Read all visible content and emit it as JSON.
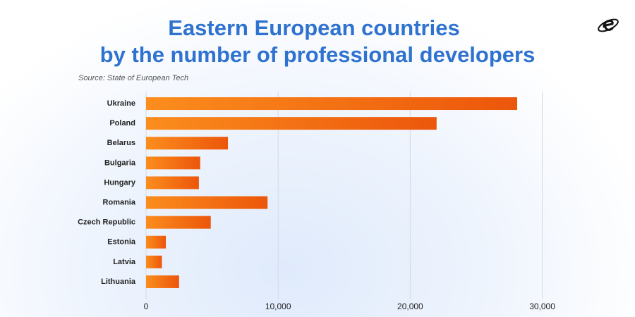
{
  "chart_data": {
    "type": "bar",
    "orientation": "horizontal",
    "title": [
      "Eastern European countries",
      "by the number of professional developers"
    ],
    "subtitle": "Source: State of European Tech",
    "categories": [
      "Ukraine",
      "Poland",
      "Belarus",
      "Bulgaria",
      "Hungary",
      "Romania",
      "Czech Republic",
      "Estonia",
      "Latvia",
      "Lithuania"
    ],
    "values": [
      28100,
      22000,
      6200,
      4100,
      4000,
      9200,
      4900,
      1500,
      1200,
      2500
    ],
    "color": [
      "#fb8d1d",
      "#ec560b"
    ],
    "xlim": [
      0,
      32000
    ],
    "xticks": [
      0,
      {
        "value": 10000,
        "label": "10,000"
      },
      {
        "value": 20000,
        "label": "20,000"
      },
      {
        "value": 30000,
        "label": "30,000"
      }
    ],
    "grid": true
  }
}
